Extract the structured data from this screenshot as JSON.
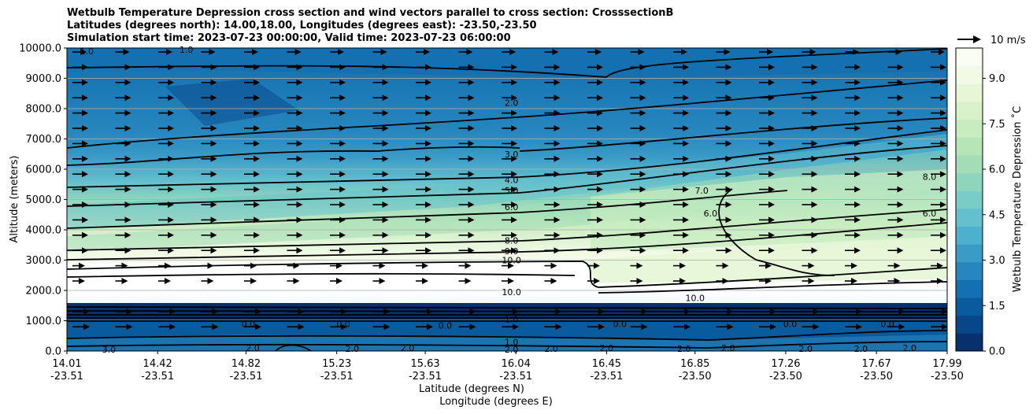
{
  "chart_data": {
    "type": "heatmap",
    "title_lines": [
      "Wetbulb Temperature Depression cross section and wind vectors parallel to cross section: CrosssectionB",
      "Latitudes (degrees north): 14.00,18.00, Longitudes (degrees east): -23.50,-23.50",
      "Simulation start time: 2023-07-23 00:00:00, Valid time: 2023-07-23 06:00:00"
    ],
    "ylabel": "Altitude (meters)",
    "xlabel_lat": "Latitude (degrees N)",
    "xlabel_lon": "Longitude (degrees E)",
    "ylim": [
      0,
      10000
    ],
    "yticks": [
      "0.0",
      "1000.0",
      "2000.0",
      "3000.0",
      "4000.0",
      "5000.0",
      "6000.0",
      "7000.0",
      "8000.0",
      "9000.0",
      "10000.0"
    ],
    "xlim": [
      14.01,
      17.99
    ],
    "x_ticks": [
      {
        "lat": "14.01",
        "lon": "-23.51"
      },
      {
        "lat": "14.42",
        "lon": "-23.51"
      },
      {
        "lat": "14.82",
        "lon": "-23.51"
      },
      {
        "lat": "15.23",
        "lon": "-23.51"
      },
      {
        "lat": "15.63",
        "lon": "-23.51"
      },
      {
        "lat": "16.04",
        "lon": "-23.51"
      },
      {
        "lat": "16.45",
        "lon": "-23.51"
      },
      {
        "lat": "16.85",
        "lon": "-23.50"
      },
      {
        "lat": "17.26",
        "lon": "-23.50"
      },
      {
        "lat": "17.67",
        "lon": "-23.50"
      },
      {
        "lat": "17.99",
        "lon": "-23.50"
      }
    ],
    "colorbar": {
      "label": "Wetbulb Temperature Depression ˚C",
      "range": [
        0,
        10
      ],
      "ticks": [
        "0.0",
        "1.5",
        "3.0",
        "4.5",
        "6.0",
        "7.5",
        "9.0"
      ],
      "colors": [
        "#08306b",
        "#08468a",
        "#0a5a9e",
        "#1470b0",
        "#2786bd",
        "#3a9bc7",
        "#4eb0cf",
        "#64c0ce",
        "#7accc6",
        "#8fd5bd",
        "#a3ddb6",
        "#b6e5b8",
        "#c8ecc0",
        "#d8f1ca",
        "#e6f6d6",
        "#f2fae6",
        "#fafdf3"
      ]
    },
    "quiver_key": {
      "label": "10 m/s",
      "value": 10
    },
    "contour_labels": [
      {
        "text": "1.0",
        "x": 14.1,
        "y": 9900
      },
      {
        "text": "1.0",
        "x": 14.55,
        "y": 9950
      },
      {
        "text": "2.0",
        "x": 16.02,
        "y": 8200
      },
      {
        "text": "3.0",
        "x": 16.02,
        "y": 6500
      },
      {
        "text": "4.0",
        "x": 16.02,
        "y": 5650
      },
      {
        "text": "5.0",
        "x": 16.02,
        "y": 5300
      },
      {
        "text": "6.0",
        "x": 16.02,
        "y": 4750
      },
      {
        "text": "8.0",
        "x": 16.02,
        "y": 3650
      },
      {
        "text": "9.0",
        "x": 16.02,
        "y": 3300
      },
      {
        "text": "10.0",
        "x": 16.02,
        "y": 3000
      },
      {
        "text": "10.0",
        "x": 16.02,
        "y": 1950
      },
      {
        "text": "7.0",
        "x": 16.88,
        "y": 5300
      },
      {
        "text": "6.0",
        "x": 16.92,
        "y": 4550
      },
      {
        "text": "8.0",
        "x": 17.91,
        "y": 5750
      },
      {
        "text": "6.0",
        "x": 17.91,
        "y": 4550
      },
      {
        "text": "0.0",
        "x": 14.83,
        "y": 900
      },
      {
        "text": "0.0",
        "x": 15.26,
        "y": 900
      },
      {
        "text": "0.0",
        "x": 15.72,
        "y": 850
      },
      {
        "text": "0.0",
        "x": 16.51,
        "y": 900
      },
      {
        "text": "0.0",
        "x": 17.28,
        "y": 900
      },
      {
        "text": "0.0",
        "x": 17.72,
        "y": 900
      },
      {
        "text": "1.0",
        "x": 16.02,
        "y": 1050
      },
      {
        "text": "1.0",
        "x": 16.02,
        "y": 300
      },
      {
        "text": "2.0",
        "x": 16.02,
        "y": 50
      },
      {
        "text": "3.0",
        "x": 14.2,
        "y": 50
      },
      {
        "text": "2.0",
        "x": 14.85,
        "y": 100
      },
      {
        "text": "2.0",
        "x": 15.3,
        "y": 80
      },
      {
        "text": "2.0",
        "x": 15.55,
        "y": 100
      },
      {
        "text": "2.0",
        "x": 16.2,
        "y": 80
      },
      {
        "text": "2.0",
        "x": 16.45,
        "y": 100
      },
      {
        "text": "2.0",
        "x": 16.8,
        "y": 80
      },
      {
        "text": "2.0",
        "x": 17.0,
        "y": 100
      },
      {
        "text": "2.0",
        "x": 17.35,
        "y": 80
      },
      {
        "text": "2.0",
        "x": 17.6,
        "y": 80
      },
      {
        "text": "2.0",
        "x": 17.82,
        "y": 100
      },
      {
        "text": "10.0",
        "x": 16.85,
        "y": 1750
      }
    ]
  }
}
